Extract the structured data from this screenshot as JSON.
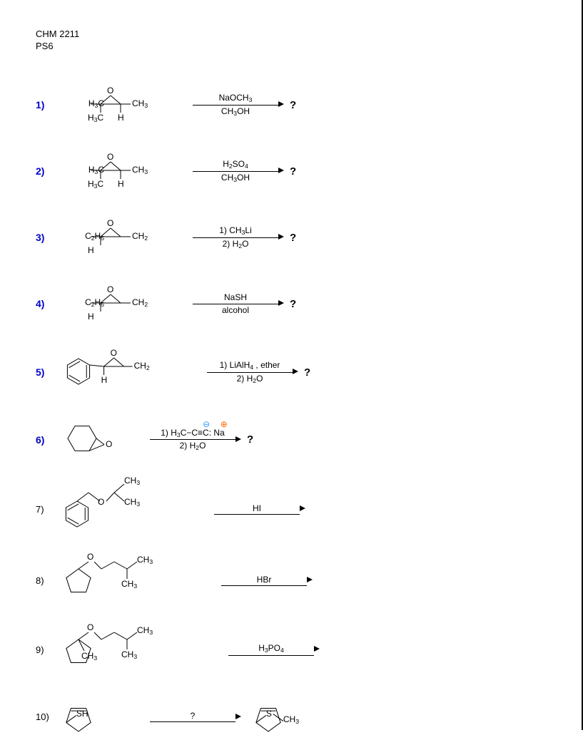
{
  "header": {
    "course": "CHM 2211",
    "pset": "PS6"
  },
  "problems": [
    {
      "num": "1)",
      "num_color": "#0000cc",
      "reag_top": "NaOCH<sub>3</sub>",
      "reag_bot": "CH<sub>3</sub>OH",
      "product_q": "?",
      "struct": "epoxide_23dimethyl"
    },
    {
      "num": "2)",
      "num_color": "#0000cc",
      "reag_top": "H<sub>2</sub>SO<sub>4</sub>",
      "reag_bot": "CH<sub>3</sub>OH",
      "product_q": "?",
      "struct": "epoxide_23dimethyl"
    },
    {
      "num": "3)",
      "num_color": "#0000cc",
      "reag_top": "1) CH<sub>3</sub>Li",
      "reag_bot": "2) H<sub>2</sub>O",
      "product_q": "?",
      "struct": "epoxide_ethyl"
    },
    {
      "num": "4)",
      "num_color": "#0000cc",
      "reag_top": "NaSH",
      "reag_bot": "alcohol",
      "product_q": "?",
      "struct": "epoxide_ethyl"
    },
    {
      "num": "5)",
      "num_color": "#0000cc",
      "reag_top": "1) LiAlH<sub>4</sub> , ether",
      "reag_bot": "2) H<sub>2</sub>O",
      "product_q": "?",
      "struct": "styrene_oxide"
    },
    {
      "num": "6)",
      "num_color": "#0000cc",
      "reag_top_html": "1) H<sub>3</sub>C−C≡C:<span style=\"position:relative\"><span style=\"position:absolute;top:-12px;left:-12px;color:#3399ff;font-size:12px\">⊖</span></span> Na<span style=\"position:relative\"><span style=\"position:absolute;top:-12px;left:-6px;color:#ff6600;font-size:12px\">⊕</span></span>",
      "reag_bot": "2) H<sub>2</sub>O",
      "product_q": "?",
      "struct": "cyclohex_oxide"
    },
    {
      "num": "7)",
      "num_color": "#000000",
      "reag_top": "HI",
      "reag_bot": "",
      "product_q": "",
      "struct": "benzyl_iPr_ether"
    },
    {
      "num": "8)",
      "num_color": "#000000",
      "reag_top": "HBr",
      "reag_bot": "",
      "product_q": "",
      "struct": "cyclopentyl_ether"
    },
    {
      "num": "9)",
      "num_color": "#000000",
      "reag_top": "H<sub>3</sub>PO<sub>4</sub>",
      "reag_bot": "",
      "product_q": "",
      "struct": "cyclopentyl_tert_ether"
    },
    {
      "num": "10)",
      "num_color": "#000000",
      "reag_top": "?",
      "reag_bot": "",
      "product_q": "",
      "struct": "cyclopentene_SH",
      "product_struct": "cyclopentene_SCH3"
    }
  ],
  "svg_structs": {
    "epoxide_23dimethyl": {
      "left_label": "H<sub>3</sub>C",
      "left_sub": "H<sub>3</sub>C",
      "right_label": "CH<sub>3</sub>",
      "right_sub": "H",
      "top": "O"
    },
    "epoxide_ethyl": {
      "left_label": "C<sub>2</sub>H<sub>5</sub>",
      "left_sub": "H",
      "right_label": "CH<sub>2</sub>",
      "top": "O"
    },
    "styrene_oxide": {
      "right_label": "CH<sub>2</sub>",
      "left_sub": "H",
      "top": "O"
    },
    "cyclohex_oxide": {
      "ring": 6,
      "fused_O": true
    },
    "benzyl_iPr_ether": {
      "r1": "CH<sub>3</sub>",
      "r2": "CH<sub>3</sub>"
    },
    "cyclopentyl_ether": {
      "r1": "CH<sub>3</sub>",
      "r2": "CH<sub>3</sub>"
    },
    "cyclopentyl_tert_ether": {
      "rme": "CH<sub>3</sub>",
      "r1": "CH<sub>3</sub>",
      "r2": "CH<sub>3</sub>"
    },
    "cyclopentene_SH": {
      "sub": "SH"
    },
    "cyclopentene_SCH3": {
      "sub_chain": "S",
      "tail": "CH<sub>3</sub>"
    }
  },
  "style": {
    "line_color": "#000000",
    "num_font_size": 14,
    "body_font_size": 13,
    "arrow_line_width": 1
  }
}
